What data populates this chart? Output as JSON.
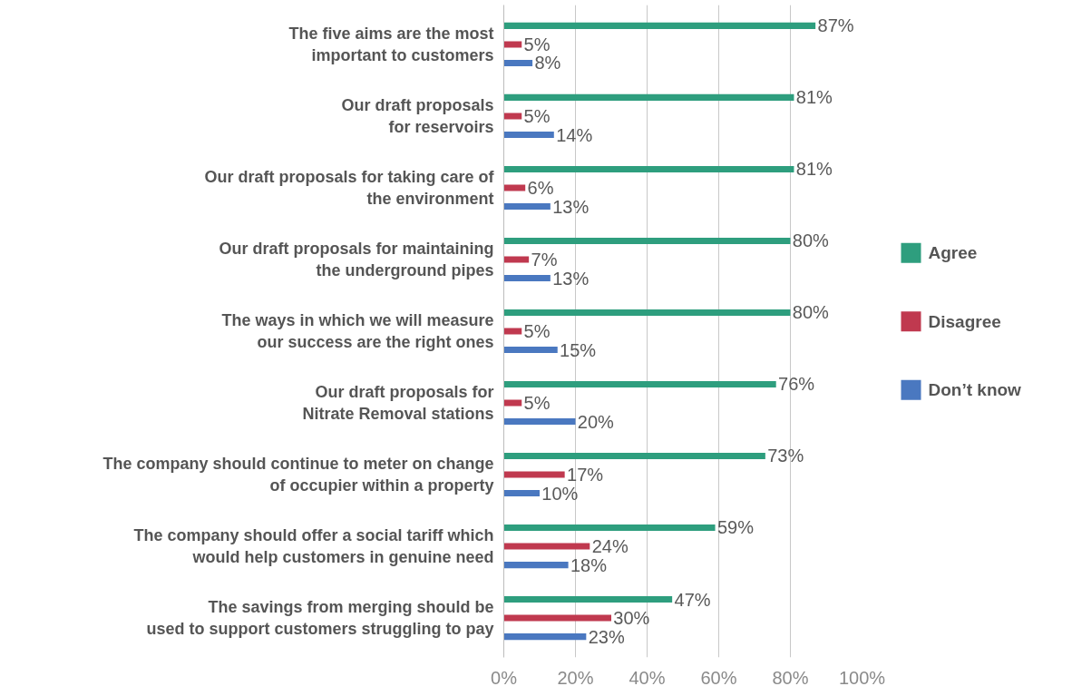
{
  "chart_data": {
    "type": "bar",
    "orientation": "horizontal",
    "categories": [
      "The five aims are the most\nimportant to customers",
      "Our draft proposals\nfor reservoirs",
      "Our draft proposals for taking care of\nthe environment",
      "Our draft proposals for maintaining\nthe underground pipes",
      "The ways in which we will measure\nour success are the right ones",
      "Our draft proposals for\nNitrate Removal stations",
      "The company should continue to meter on change\nof occupier within a property",
      "The company should offer a social tariff which\nwould help customers in genuine need",
      "The savings from merging should be\nused to support customers struggling to pay"
    ],
    "series": [
      {
        "name": "Agree",
        "color": "#2e9e7e",
        "values": [
          87,
          81,
          81,
          80,
          80,
          76,
          73,
          59,
          47
        ],
        "value_labels": [
          "87%",
          "81%",
          "81%",
          "80%",
          "80%",
          "76%",
          "73%",
          "59%",
          "47%"
        ]
      },
      {
        "name": "Disagree",
        "color": "#c0394f",
        "values": [
          5,
          5,
          6,
          7,
          5,
          5,
          17,
          24,
          30
        ],
        "value_labels": [
          "5%",
          "5%",
          "6%",
          "7%",
          "5%",
          "5%",
          "17%",
          "24%",
          "30%"
        ]
      },
      {
        "name": "Don’t know",
        "color": "#4a78c0",
        "values": [
          8,
          14,
          13,
          13,
          15,
          20,
          10,
          18,
          23
        ],
        "value_labels": [
          "8%",
          "14%",
          "13%",
          "13%",
          "15%",
          "20%",
          "10%",
          "18%",
          "23%"
        ]
      }
    ],
    "xlim": [
      0,
      100
    ],
    "xticks": [
      {
        "value": 0,
        "label": "0%"
      },
      {
        "value": 20,
        "label": "20%"
      },
      {
        "value": 40,
        "label": "40%"
      },
      {
        "value": 60,
        "label": "60%"
      },
      {
        "value": 80,
        "label": "80%"
      },
      {
        "value": 100,
        "label": "100%"
      }
    ],
    "grid": "x",
    "legend": "right"
  }
}
